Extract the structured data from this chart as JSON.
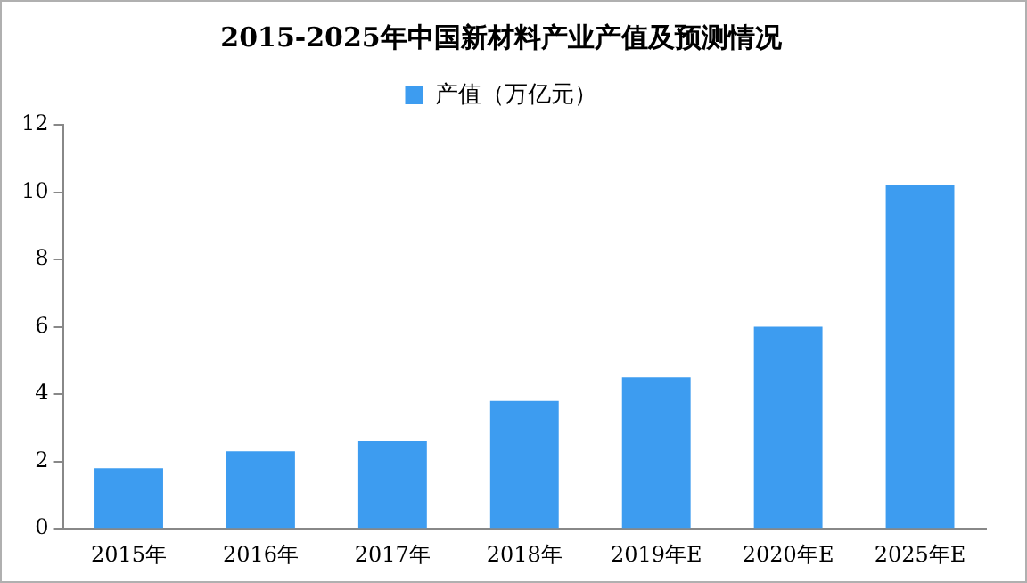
{
  "chart_data": {
    "type": "bar",
    "title": "2015-2025年中国新材料产业产值及预测情况",
    "categories": [
      "2015年",
      "2016年",
      "2017年",
      "2018年",
      "2019年E",
      "2020年E",
      "2025年E"
    ],
    "series": [
      {
        "name": "产值（万亿元）",
        "color": "#3d9cf0",
        "values": [
          1.8,
          2.3,
          2.6,
          3.8,
          4.5,
          6.0,
          10.2
        ]
      }
    ],
    "ylim": [
      0,
      12
    ],
    "yticks": [
      0,
      2,
      4,
      6,
      8,
      10,
      12
    ],
    "grid": false,
    "legend": "top"
  }
}
